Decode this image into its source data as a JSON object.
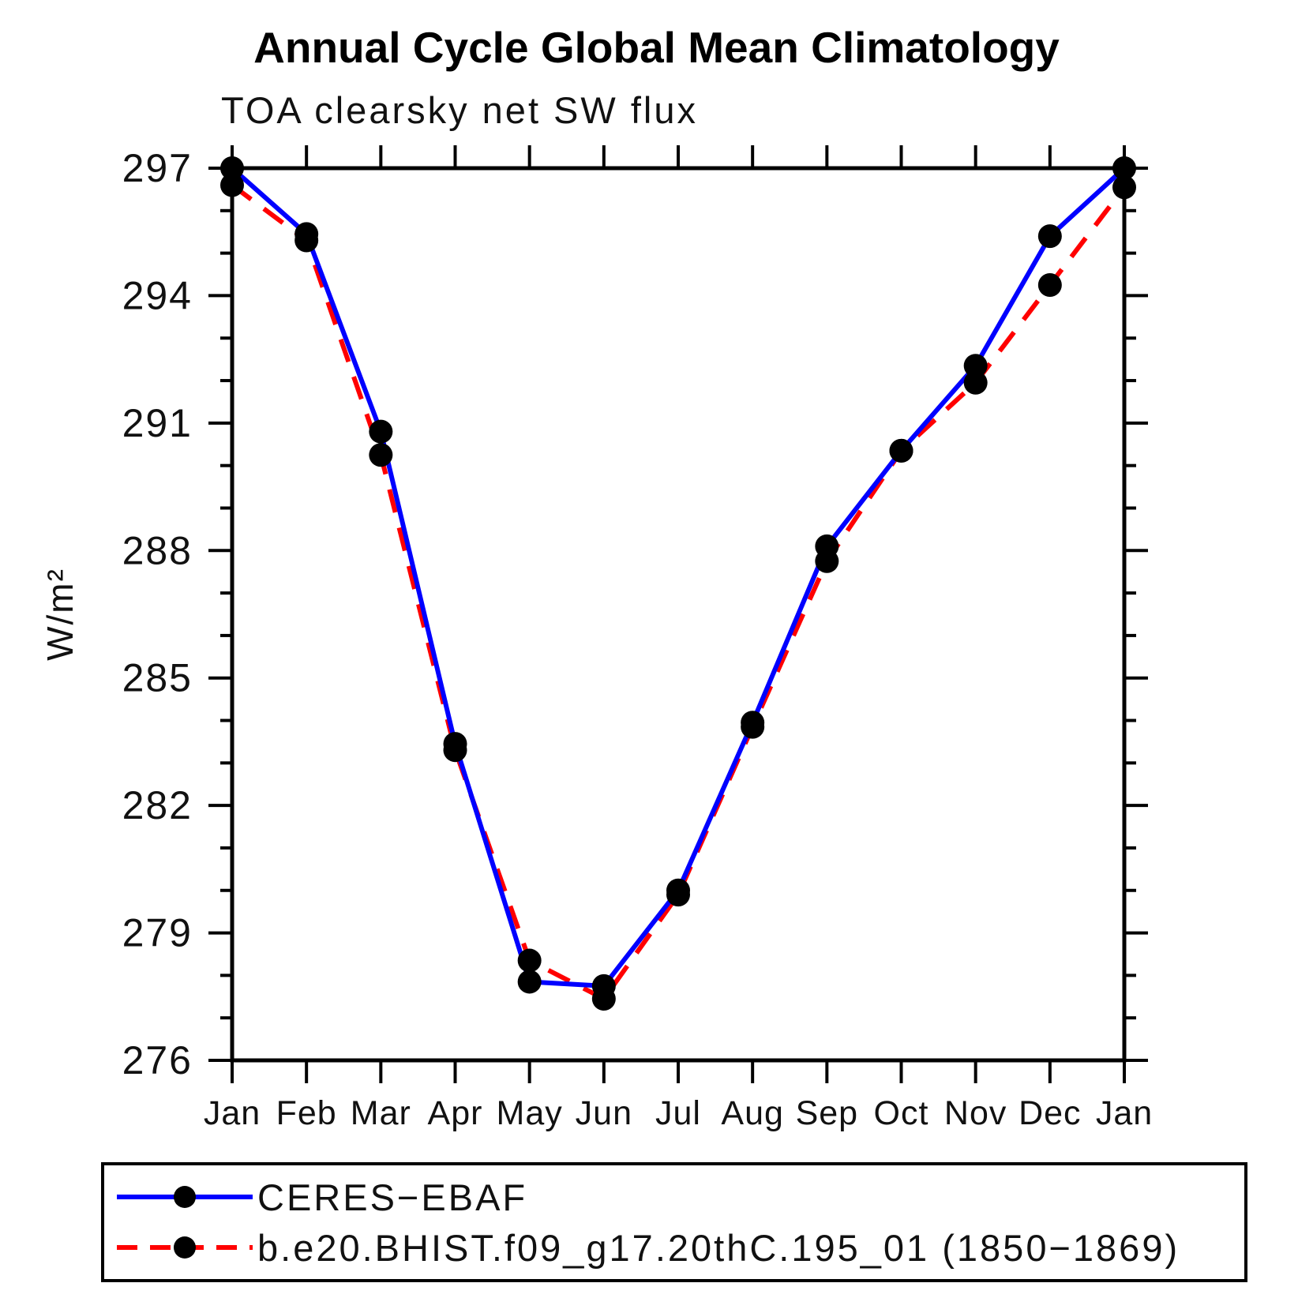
{
  "title": "Annual Cycle Global Mean Climatology",
  "subtitle": "TOA clearsky net SW flux",
  "chart_data": {
    "type": "line",
    "categories": [
      "Jan",
      "Feb",
      "Mar",
      "Apr",
      "May",
      "Jun",
      "Jul",
      "Aug",
      "Sep",
      "Oct",
      "Nov",
      "Dec",
      "Jan"
    ],
    "ylabel": "W/m²",
    "ylim": [
      276,
      297
    ],
    "y_major_ticks": [
      276,
      279,
      282,
      285,
      288,
      291,
      294,
      297
    ],
    "y_minor_step": 1,
    "grid": false,
    "legend_position": "bottom",
    "marker_color": "#000000",
    "series": [
      {
        "name": "CERES−EBAF",
        "color": "#0000ff",
        "style": "solid",
        "marker": "black-dot",
        "values": [
          297.0,
          295.45,
          290.8,
          283.45,
          277.85,
          277.75,
          280.0,
          283.95,
          288.1,
          290.35,
          292.35,
          295.4,
          297.0
        ]
      },
      {
        "name": "b.e20.BHIST.f09_g17.20thC.195_01 (1850−1869)",
        "color": "#ff0000",
        "style": "dashed",
        "marker": "black-dot",
        "values": [
          296.6,
          295.3,
          290.25,
          283.3,
          278.35,
          277.45,
          279.9,
          283.85,
          287.75,
          290.35,
          291.95,
          294.25,
          296.55
        ]
      }
    ]
  }
}
